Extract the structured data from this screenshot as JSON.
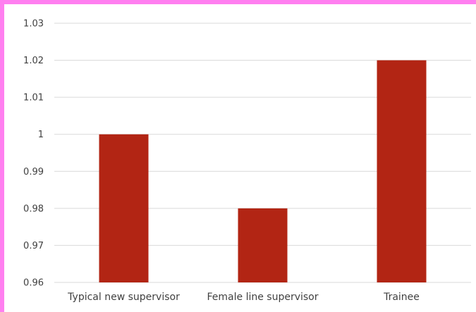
{
  "chart_data": {
    "type": "bar",
    "title": "",
    "xlabel": "",
    "ylabel": "",
    "categories": [
      "Typical new supervisor",
      "Female line supervisor",
      "Trainee"
    ],
    "values": [
      1.0,
      0.98,
      1.02
    ],
    "ylim": [
      0.96,
      1.03
    ],
    "yticks": [
      "0.96",
      "0.97",
      "0.98",
      "0.99",
      "1",
      "1.01",
      "1.02",
      "1.03"
    ],
    "grid": true,
    "legend": "none",
    "colors": {
      "bar": "#b22514",
      "grid": "#d9d9d9",
      "frame_accent": "#ff7ff0"
    }
  }
}
